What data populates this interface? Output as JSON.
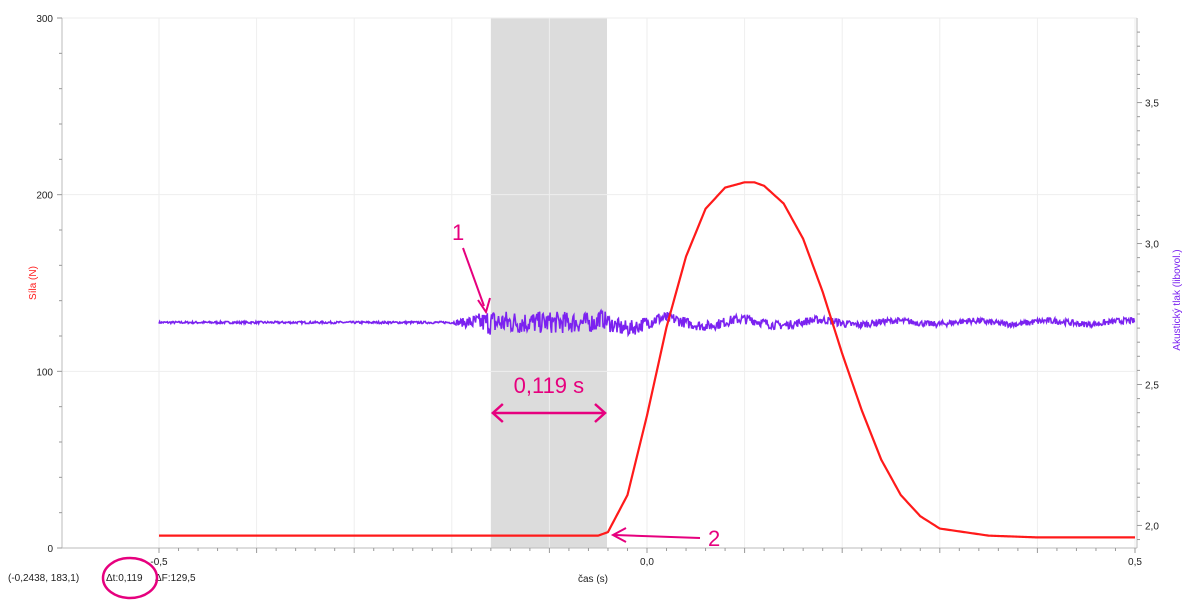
{
  "chart_data": {
    "type": "line",
    "xlabel": "čas (s)",
    "ylabel_left": "Síla (N)",
    "ylabel_right": "Akustický tlak (libovol.)",
    "xlim": [
      -0.5,
      0.5
    ],
    "ylim_left": [
      0,
      300
    ],
    "ylim_right": [
      1.92,
      3.8
    ],
    "x_ticks": [
      "-0,5",
      "0,0",
      "0,5"
    ],
    "x_tick_values": [
      -0.5,
      0.0,
      0.5
    ],
    "y_left_ticks": [
      "0",
      "100",
      "200",
      "300"
    ],
    "y_left_tick_values": [
      0,
      100,
      200,
      300
    ],
    "y_right_ticks": [
      "2,0",
      "2,5",
      "3,0",
      "3,5"
    ],
    "y_right_tick_values": [
      2.0,
      2.5,
      3.0,
      3.5
    ],
    "grid": true,
    "selection": {
      "x_start": -0.16,
      "x_end": -0.041
    },
    "series": [
      {
        "axis": "right",
        "color": "#7b22f0",
        "x": [
          -0.5,
          -0.4,
          -0.3,
          -0.2,
          -0.16,
          -0.12,
          -0.08,
          -0.04,
          0.0,
          0.05,
          0.1,
          0.15,
          0.2,
          0.25,
          0.3,
          0.35,
          0.4,
          0.45,
          0.5
        ],
        "y": [
          2.72,
          2.72,
          2.72,
          2.72,
          2.72,
          2.72,
          2.72,
          2.72,
          2.72,
          2.72,
          2.72,
          2.72,
          2.72,
          2.72,
          2.72,
          2.72,
          2.72,
          2.72,
          2.72
        ],
        "noise_amplitude": [
          0.0,
          0.0,
          0.0,
          0.0,
          0.06,
          0.05,
          0.05,
          0.04,
          0.03,
          0.02,
          0.02,
          0.015,
          0.015,
          0.01,
          0.01,
          0.01,
          0.01,
          0.01,
          0.01
        ]
      },
      {
        "axis": "left",
        "color": "#ff1a1a",
        "x": [
          -0.5,
          -0.4,
          -0.3,
          -0.2,
          -0.1,
          -0.05,
          -0.04,
          -0.02,
          0.0,
          0.02,
          0.04,
          0.06,
          0.08,
          0.1,
          0.11,
          0.12,
          0.14,
          0.16,
          0.18,
          0.2,
          0.22,
          0.24,
          0.26,
          0.28,
          0.3,
          0.35,
          0.4,
          0.45,
          0.5
        ],
        "y": [
          7,
          7,
          7,
          7,
          7,
          7,
          9,
          30,
          75,
          125,
          165,
          192,
          204,
          207,
          207,
          205,
          195,
          175,
          145,
          110,
          78,
          50,
          30,
          18,
          11,
          7,
          6,
          6,
          6
        ]
      }
    ],
    "annotations": {
      "label_1": "1",
      "label_2": "2",
      "interval_label": "0,119 s"
    },
    "status_line": {
      "coords": "(-0,2438, 183,1)",
      "delta_t": "Δt:0,119",
      "delta_f": "ΔF:129,5"
    }
  },
  "colors": {
    "force": "#ff1a1a",
    "pressure": "#7b22f0",
    "annotation": "#e6007e",
    "selection": "#dcdcdc"
  }
}
